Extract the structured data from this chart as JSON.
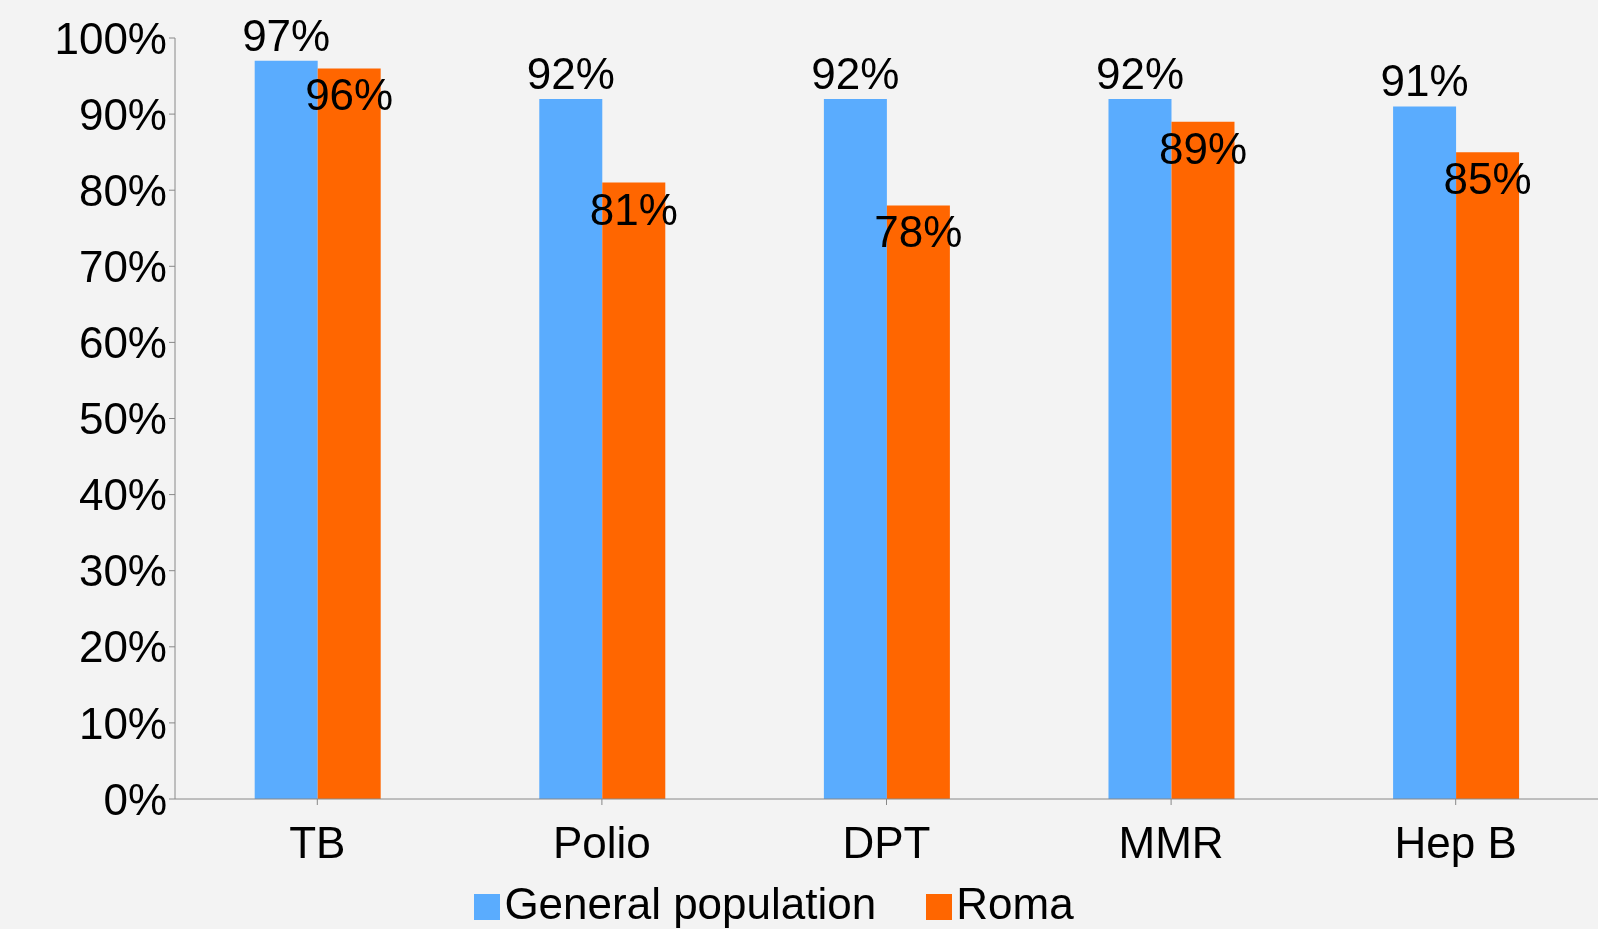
{
  "chart_data": {
    "type": "bar",
    "categories": [
      "TB",
      "Polio",
      "DPT",
      "MMR",
      "Hep B"
    ],
    "series": [
      {
        "name": "General population",
        "color": "#5aacfe",
        "values": [
          97,
          92,
          92,
          92,
          91
        ],
        "value_labels": [
          "97%",
          "92%",
          "92%",
          "92%",
          "91%"
        ]
      },
      {
        "name": "Roma",
        "color": "#ff6600",
        "values": [
          96,
          81,
          78,
          89,
          85
        ],
        "value_labels": [
          "96%",
          "81%",
          "78%",
          "89%",
          "85%"
        ]
      }
    ],
    "ylim": [
      0,
      100
    ],
    "yticks": [
      {
        "value": 0,
        "label": "0%"
      },
      {
        "value": 10,
        "label": "10%"
      },
      {
        "value": 20,
        "label": "20%"
      },
      {
        "value": 30,
        "label": "30%"
      },
      {
        "value": 40,
        "label": "40%"
      },
      {
        "value": 50,
        "label": "50%"
      },
      {
        "value": 60,
        "label": "60%"
      },
      {
        "value": 70,
        "label": "70%"
      },
      {
        "value": 80,
        "label": "80%"
      },
      {
        "value": 90,
        "label": "90%"
      },
      {
        "value": 100,
        "label": "100%"
      }
    ],
    "grid": false,
    "legend": "bottom"
  }
}
